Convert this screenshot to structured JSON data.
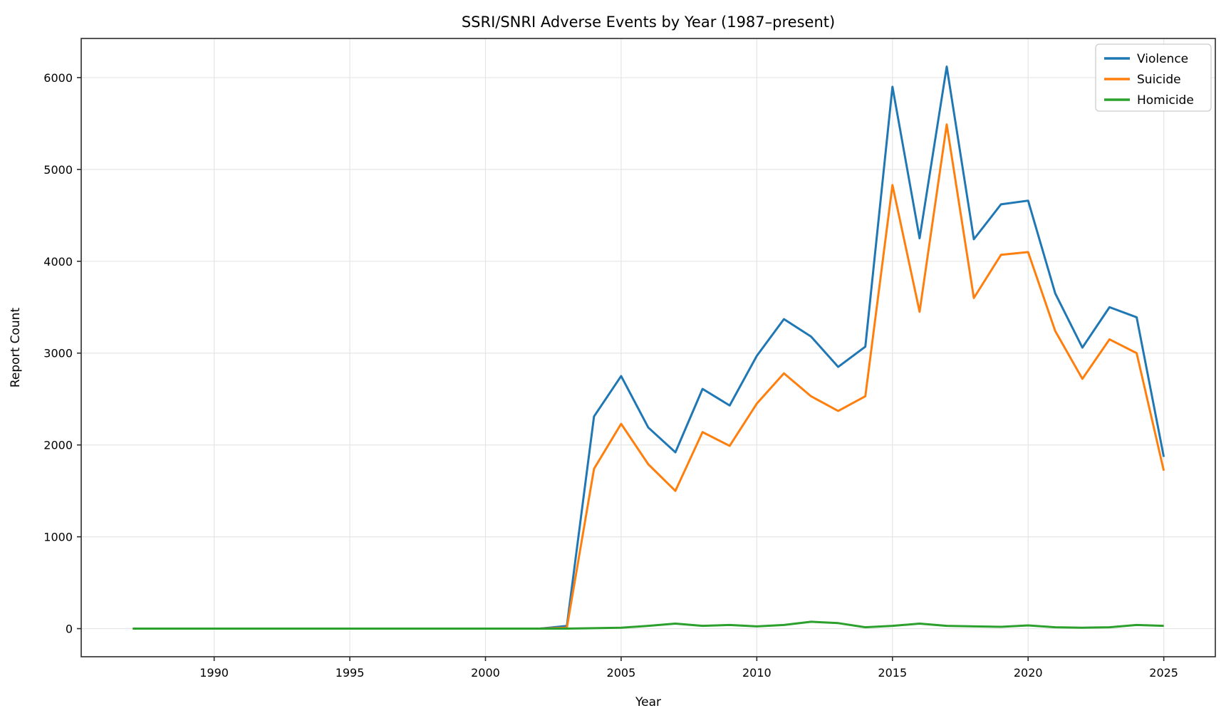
{
  "chart_data": {
    "type": "line",
    "title": "SSRI/SNRI Adverse Events by Year (1987–present)",
    "xlabel": "Year",
    "ylabel": "Report Count",
    "grid": true,
    "legend_position": "upper right",
    "xlim": [
      1985.1,
      2026.9
    ],
    "ylim": [
      -306,
      6426
    ],
    "x_ticks": [
      1990,
      1995,
      2000,
      2005,
      2010,
      2015,
      2020,
      2025
    ],
    "y_ticks": [
      0,
      1000,
      2000,
      3000,
      4000,
      5000,
      6000
    ],
    "x": [
      1987,
      1988,
      1989,
      1990,
      1991,
      1992,
      1993,
      1994,
      1995,
      1996,
      1997,
      1998,
      1999,
      2000,
      2001,
      2002,
      2003,
      2004,
      2005,
      2006,
      2007,
      2008,
      2009,
      2010,
      2011,
      2012,
      2013,
      2014,
      2015,
      2016,
      2017,
      2018,
      2019,
      2020,
      2021,
      2022,
      2023,
      2024,
      2025
    ],
    "series": [
      {
        "name": "Violence",
        "color": "#1f77b4",
        "values": [
          0,
          0,
          0,
          0,
          0,
          0,
          0,
          0,
          0,
          0,
          0,
          0,
          0,
          0,
          0,
          0,
          30,
          2310,
          2750,
          2190,
          1920,
          2610,
          2430,
          2970,
          3370,
          3180,
          2850,
          3070,
          5900,
          4250,
          6120,
          4240,
          4620,
          4660,
          3650,
          3060,
          3500,
          3390,
          1870
        ]
      },
      {
        "name": "Suicide",
        "color": "#ff7f0e",
        "values": [
          0,
          0,
          0,
          0,
          0,
          0,
          0,
          0,
          0,
          0,
          0,
          0,
          0,
          0,
          0,
          0,
          10,
          1740,
          2230,
          1790,
          1500,
          2140,
          1990,
          2450,
          2780,
          2530,
          2370,
          2530,
          4830,
          3450,
          5490,
          3600,
          4070,
          4100,
          3240,
          2720,
          3150,
          3000,
          1720
        ]
      },
      {
        "name": "Homicide",
        "color": "#2ca02c",
        "values": [
          0,
          0,
          0,
          0,
          0,
          0,
          0,
          0,
          0,
          0,
          0,
          0,
          0,
          0,
          0,
          0,
          0,
          5,
          10,
          30,
          55,
          30,
          40,
          25,
          40,
          75,
          60,
          15,
          30,
          55,
          30,
          25,
          20,
          35,
          15,
          10,
          15,
          40,
          30
        ]
      }
    ],
    "colors": {
      "grid": "#e5e5e5",
      "spine": "#2b2b2b",
      "background": "#ffffff",
      "legend_border": "#cccccc"
    }
  }
}
